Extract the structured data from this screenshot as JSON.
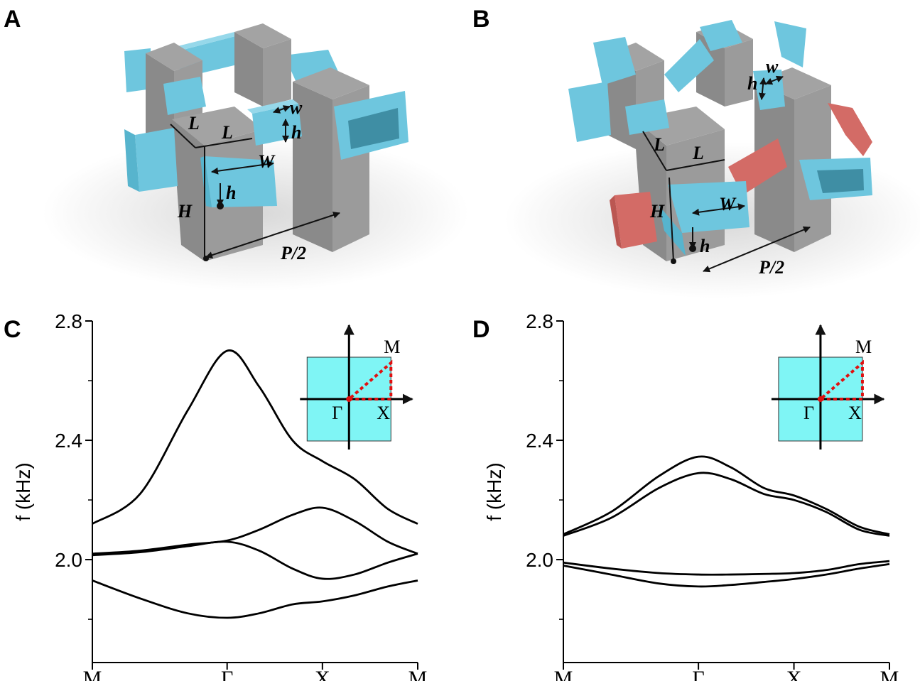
{
  "panels": [
    {
      "label": "A",
      "dims": [
        "L",
        "L",
        "w",
        "h",
        "W",
        "h",
        "H",
        "P/2"
      ]
    },
    {
      "label": "B",
      "dims": [
        "w",
        "h",
        "L",
        "L",
        "H",
        "W",
        "h",
        "P/2"
      ]
    }
  ],
  "chart_data": [
    {
      "type": "line",
      "panel_label": "C",
      "ylabel": "f (kHz)",
      "x": [
        0,
        0.5,
        1.0,
        1.414,
        1.75,
        2.1,
        2.414,
        2.75,
        3.1,
        3.414
      ],
      "xlim": [
        0,
        3.414
      ],
      "xticks": [
        {
          "value": 0,
          "label": "M"
        },
        {
          "value": 1.414,
          "label": "Γ"
        },
        {
          "value": 2.414,
          "label": "X"
        },
        {
          "value": 3.414,
          "label": "M"
        }
      ],
      "ylim": [
        1.655,
        2.8
      ],
      "yticks": [
        {
          "value": 2,
          "label": "2.0"
        },
        2.4,
        2.8
      ],
      "yticks_minor": [
        1.8,
        2.2,
        2.6
      ],
      "inset_labels": [
        "M",
        "Γ",
        "X"
      ],
      "series": [
        {
          "color": "#000000",
          "values": [
            2.12,
            2.22,
            2.5,
            2.7,
            2.58,
            2.4,
            2.33,
            2.27,
            2.17,
            2.12
          ]
        },
        {
          "color": "#000000",
          "values": [
            2.02,
            2.03,
            2.05,
            2.064,
            2.1,
            2.15,
            2.174,
            2.13,
            2.06,
            2.02
          ]
        },
        {
          "color": "#000000",
          "values": [
            2.015,
            2.025,
            2.045,
            2.06,
            2.03,
            1.97,
            1.936,
            1.95,
            1.99,
            2.02
          ]
        },
        {
          "color": "#000000",
          "values": [
            1.93,
            1.87,
            1.82,
            1.805,
            1.82,
            1.85,
            1.86,
            1.88,
            1.91,
            1.93
          ]
        }
      ]
    },
    {
      "type": "line",
      "panel_label": "D",
      "ylabel": "f (kHz)",
      "x": [
        0,
        0.5,
        1.0,
        1.414,
        1.75,
        2.1,
        2.414,
        2.75,
        3.1,
        3.414
      ],
      "xlim": [
        0,
        3.414
      ],
      "xticks": [
        {
          "value": 0,
          "label": "M"
        },
        {
          "value": 1.414,
          "label": "Γ"
        },
        {
          "value": 2.414,
          "label": "X"
        },
        {
          "value": 3.414,
          "label": "M"
        }
      ],
      "ylim": [
        1.655,
        2.8
      ],
      "yticks": [
        {
          "value": 2,
          "label": "2.0"
        },
        2.4,
        2.8
      ],
      "yticks_minor": [
        1.8,
        2.2,
        2.6
      ],
      "inset_labels": [
        "M",
        "Γ",
        "X"
      ],
      "series": [
        {
          "color": "#000000",
          "values": [
            2.085,
            2.16,
            2.28,
            2.345,
            2.31,
            2.24,
            2.215,
            2.17,
            2.11,
            2.085
          ]
        },
        {
          "color": "#000000",
          "values": [
            2.08,
            2.14,
            2.24,
            2.29,
            2.27,
            2.22,
            2.2,
            2.16,
            2.1,
            2.08
          ]
        },
        {
          "color": "#000000",
          "values": [
            1.99,
            1.97,
            1.955,
            1.95,
            1.95,
            1.952,
            1.955,
            1.965,
            1.985,
            1.995
          ]
        },
        {
          "color": "#000000",
          "values": [
            1.98,
            1.95,
            1.92,
            1.91,
            1.915,
            1.925,
            1.935,
            1.95,
            1.97,
            1.985
          ]
        }
      ]
    }
  ]
}
